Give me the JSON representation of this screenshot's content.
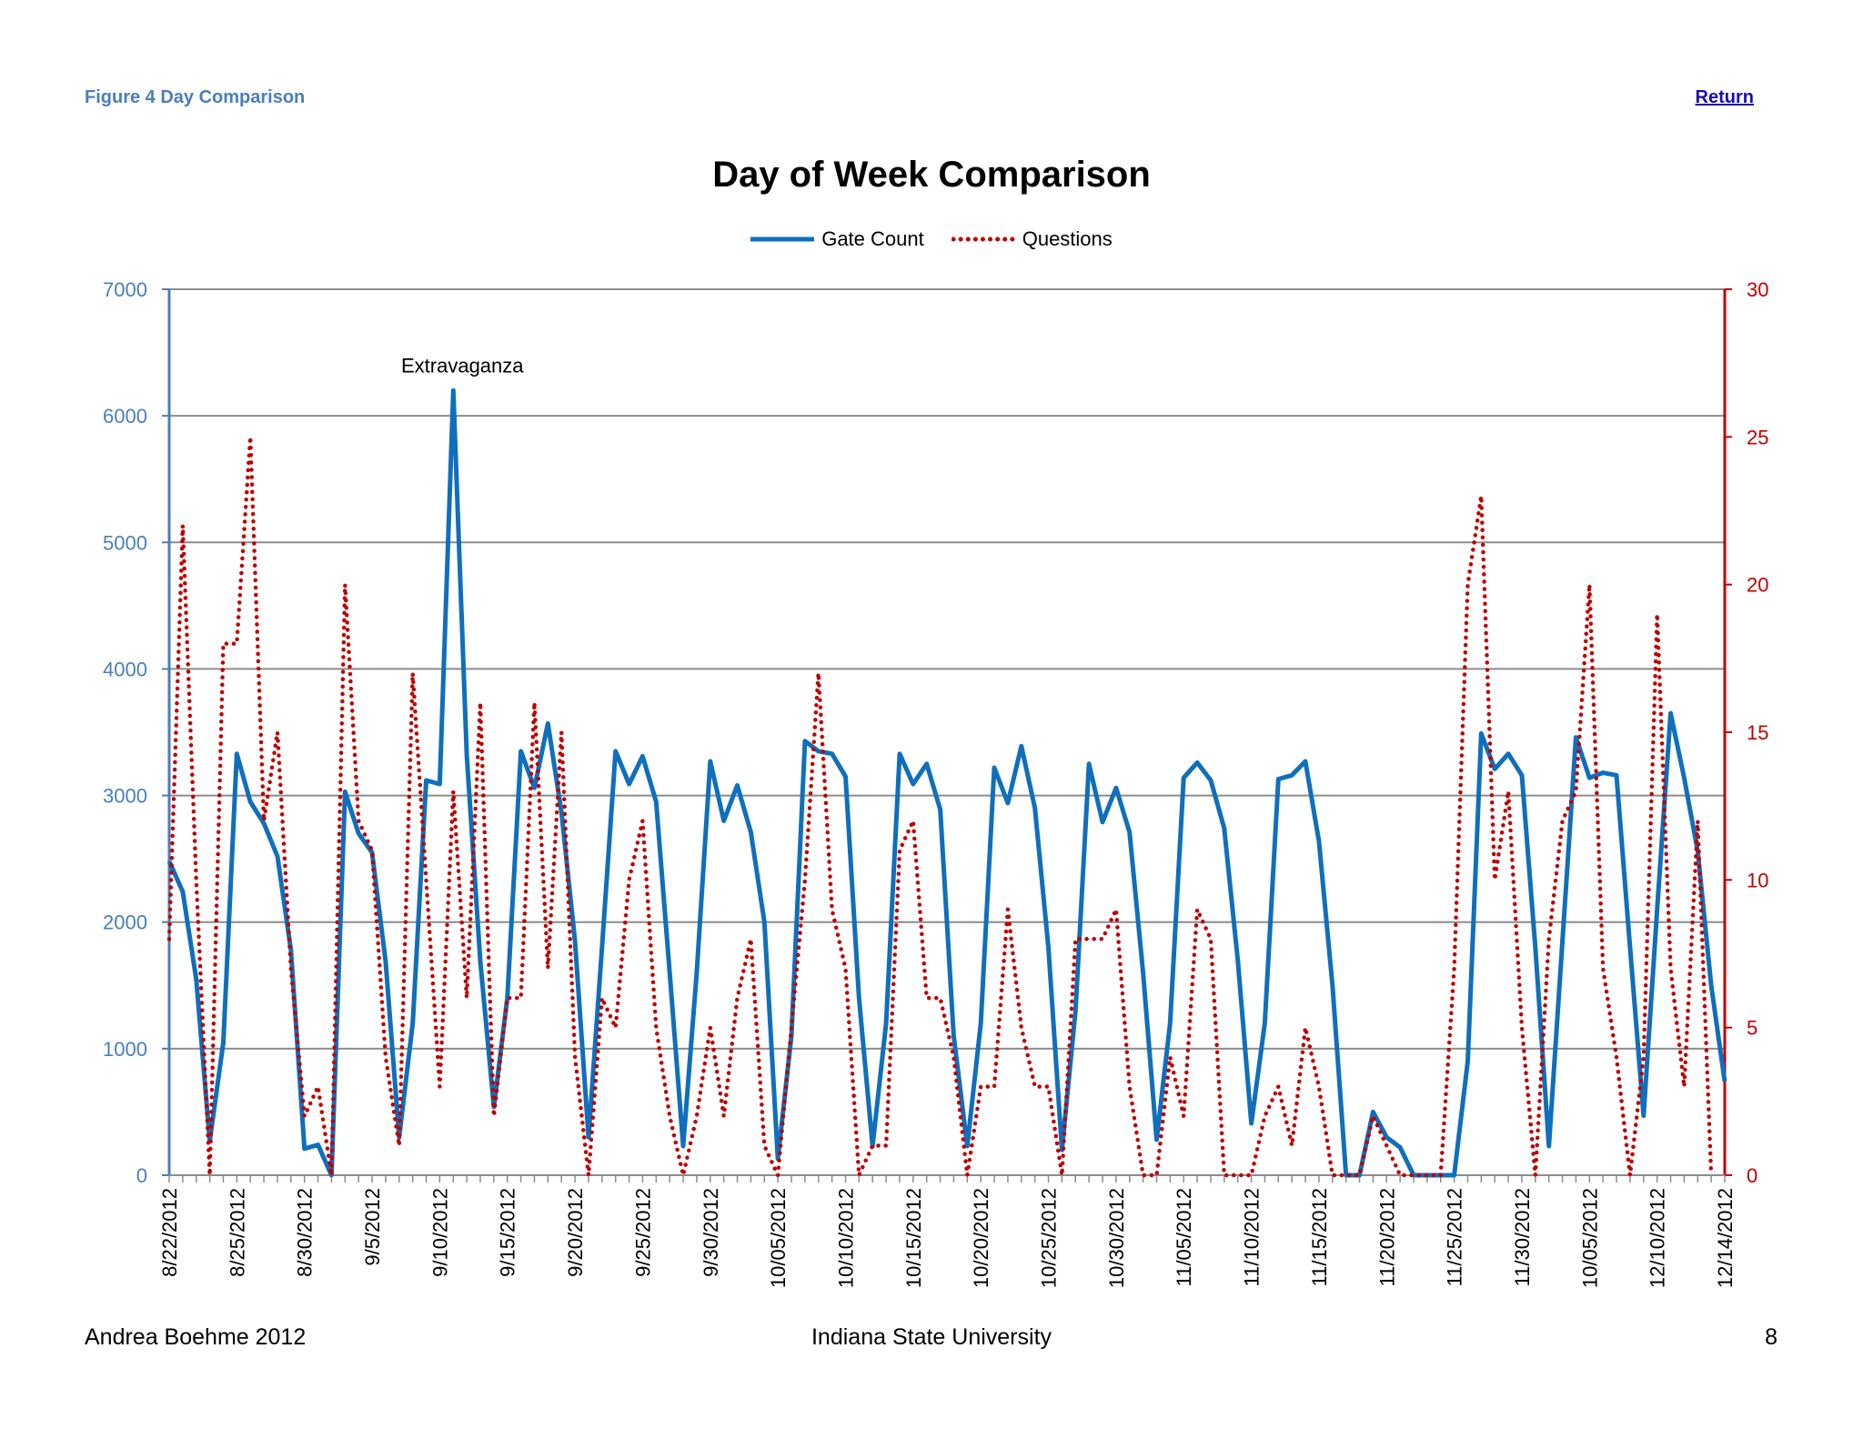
{
  "header": {
    "figure_label": "Figure 4 Day Comparison",
    "return_label": "Return"
  },
  "footer": {
    "author": "Andrea Boehme 2012",
    "institution": "Indiana State University",
    "page_number": "8"
  },
  "chart_data": {
    "type": "line",
    "title": "Day of Week Comparison",
    "annotation": "Extravaganza",
    "x_tick_labels": [
      "8/22/2012",
      "8/25/2012",
      "8/30/2012",
      "9/5/2012",
      "9/10/2012",
      "9/15/2012",
      "9/20/2012",
      "9/25/2012",
      "9/30/2012",
      "10/05/2012",
      "10/10/2012",
      "10/15/2012",
      "10/20/2012",
      "10/25/2012",
      "10/30/2012",
      "11/05/2012",
      "11/10/2012",
      "11/15/2012",
      "11/20/2012",
      "11/25/2012",
      "11/30/2012",
      "10/05/2012",
      "12/10/2012",
      "12/14/2012"
    ],
    "y_left": {
      "min": 0,
      "max": 7000,
      "ticks": [
        0,
        1000,
        2000,
        3000,
        4000,
        5000,
        6000,
        7000
      ],
      "color": "#4a7ebb"
    },
    "y_right": {
      "min": 0,
      "max": 30,
      "ticks": [
        0,
        5,
        10,
        15,
        20,
        25,
        30
      ],
      "color": "#c00000"
    },
    "grid": true,
    "legend_position": "top-center",
    "series": [
      {
        "name": "Gate Count",
        "axis": "left",
        "color": "#0f6fbd",
        "style": "solid",
        "values": [
          2480,
          2240,
          1550,
          270,
          1050,
          3330,
          2950,
          2780,
          2520,
          1780,
          210,
          240,
          0,
          3030,
          2700,
          2550,
          1690,
          300,
          1200,
          3120,
          3090,
          6200,
          3320,
          1690,
          540,
          1400,
          3350,
          3060,
          3570,
          2870,
          1850,
          300,
          1800,
          3350,
          3090,
          3310,
          2950,
          1600,
          230,
          1600,
          3270,
          2800,
          3080,
          2710,
          2000,
          130,
          1100,
          3430,
          3350,
          3330,
          3150,
          1400,
          230,
          1200,
          3330,
          3090,
          3250,
          2890,
          1100,
          230,
          1200,
          3220,
          2940,
          3390,
          2900,
          1800,
          200,
          1300,
          3250,
          2790,
          3060,
          2710,
          1600,
          280,
          1200,
          3140,
          3260,
          3120,
          2740,
          1700,
          410,
          1200,
          3130,
          3160,
          3270,
          2640,
          1500,
          0,
          0,
          500,
          300,
          220,
          0,
          0,
          0,
          0,
          900,
          3490,
          3210,
          3330,
          3160,
          1800,
          230,
          1850,
          3460,
          3140,
          3180,
          3160,
          1800,
          470,
          2100,
          3650,
          3140,
          2560,
          1500,
          740
        ]
      },
      {
        "name": "Questions",
        "axis": "right",
        "color": "#c00000",
        "style": "dotted",
        "values": [
          8,
          22,
          10,
          0,
          18,
          18,
          25,
          12,
          15,
          7,
          2,
          3,
          0,
          20,
          12,
          11,
          4,
          1,
          17,
          10,
          3,
          13,
          6,
          16,
          2,
          6,
          6,
          16,
          7,
          15,
          4,
          0,
          6,
          5,
          10,
          12,
          5,
          2,
          0,
          2,
          5,
          2,
          6,
          8,
          1,
          0,
          5,
          10,
          17,
          9,
          7,
          0,
          1,
          1,
          11,
          12,
          6,
          6,
          4,
          0,
          3,
          3,
          9,
          5,
          3,
          3,
          0,
          8,
          8,
          8,
          9,
          3,
          0,
          0,
          4,
          2,
          9,
          8,
          0,
          0,
          0,
          2,
          3,
          1,
          5,
          3,
          0,
          0,
          0,
          2,
          1,
          0,
          0,
          0,
          0,
          7,
          20,
          23,
          10,
          13,
          5,
          0,
          8,
          12,
          13,
          20,
          7,
          4,
          0,
          4,
          19,
          7,
          3,
          12,
          0
        ]
      }
    ]
  }
}
